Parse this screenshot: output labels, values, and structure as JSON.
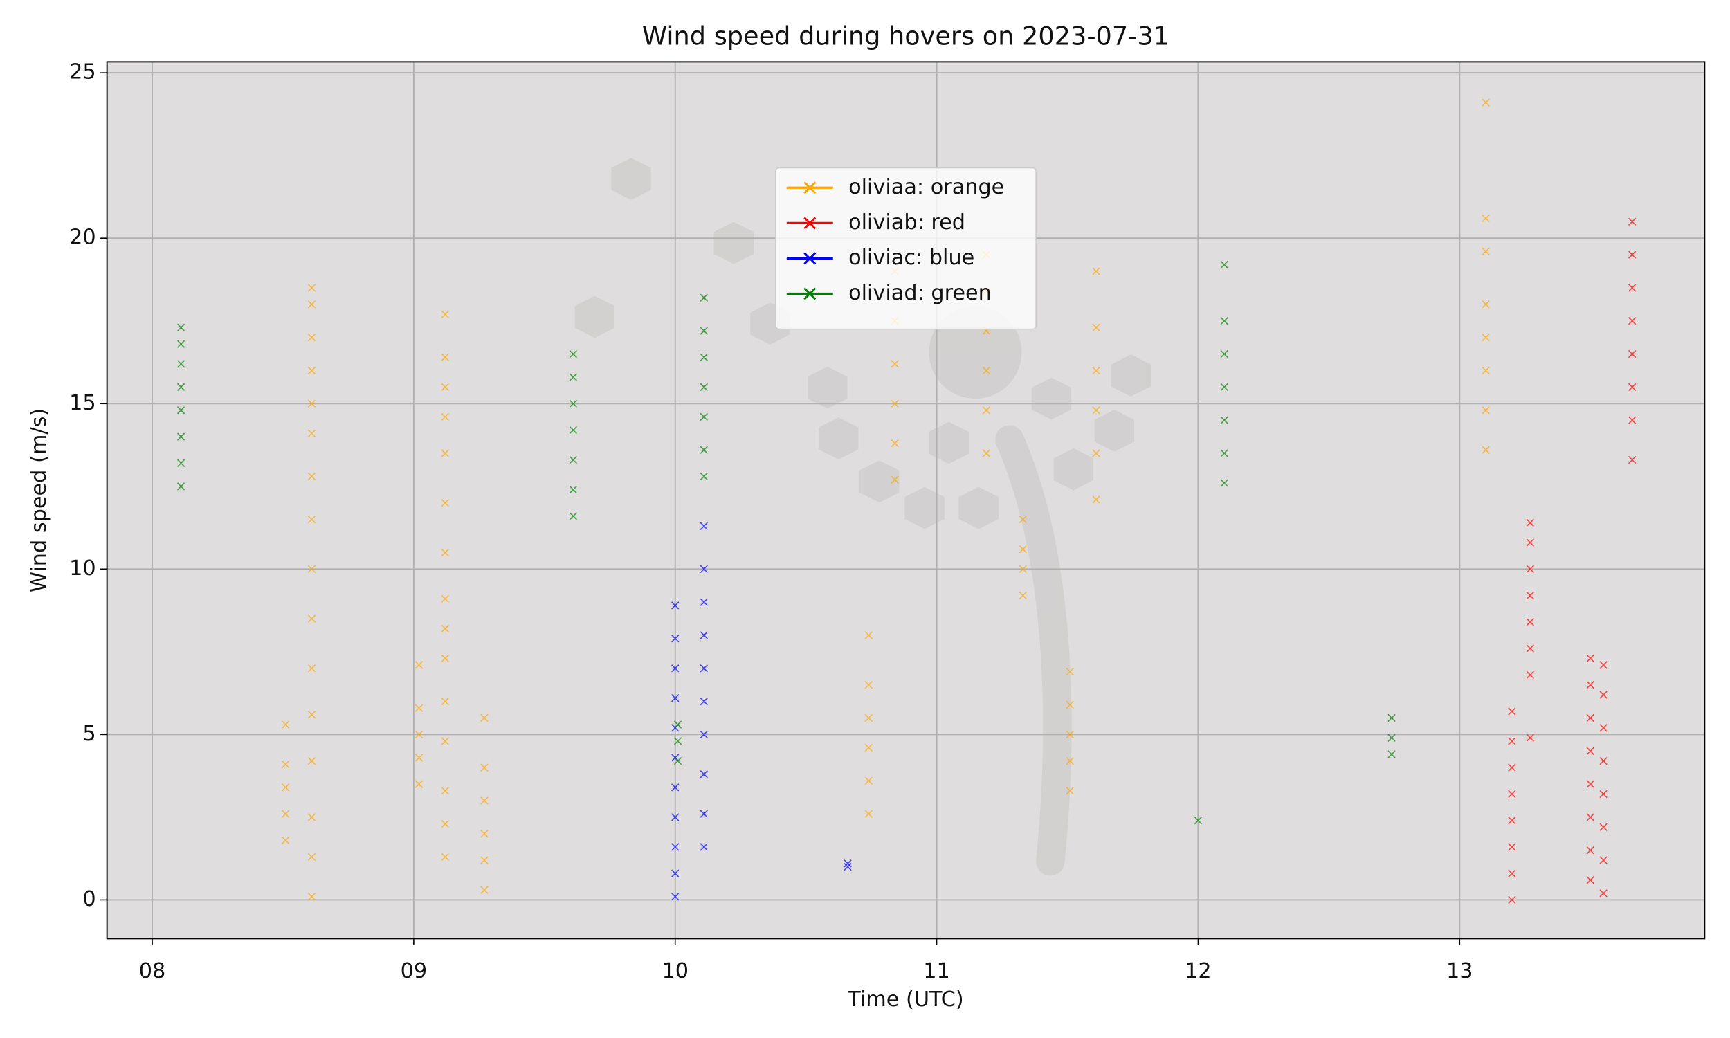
{
  "chart_data": {
    "type": "scatter",
    "title": "Wind speed during hovers on 2023-07-31",
    "x_label": "Time (UTC)",
    "y_label": "Wind speed (m/s)",
    "xlim": [
      7.827,
      13.937
    ],
    "ylim": [
      -1.17,
      25.33
    ],
    "xticks": [
      {
        "value": 8,
        "label": "08"
      },
      {
        "value": 9,
        "label": "09"
      },
      {
        "value": 10,
        "label": "10"
      },
      {
        "value": 11,
        "label": "11"
      },
      {
        "value": 12,
        "label": "12"
      },
      {
        "value": 13,
        "label": "13"
      }
    ],
    "yticks": [
      0,
      5,
      10,
      15,
      20,
      25
    ],
    "grid": true,
    "background": "#dfdddd",
    "legend_loc": "upper center",
    "series": [
      {
        "name": "oliviaa: orange",
        "color": "orange",
        "x": [
          8.51,
          8.51,
          8.51,
          8.51,
          8.51,
          8.61,
          8.61,
          8.61,
          8.61,
          8.61,
          8.61,
          8.61,
          8.61,
          8.61,
          8.61,
          8.61,
          8.61,
          8.61,
          8.61,
          8.61,
          8.61,
          9.02,
          9.02,
          9.02,
          9.02,
          9.02,
          9.12,
          9.12,
          9.12,
          9.12,
          9.12,
          9.12,
          9.12,
          9.12,
          9.12,
          9.12,
          9.12,
          9.12,
          9.12,
          9.12,
          9.12,
          9.27,
          9.27,
          9.27,
          9.27,
          9.27,
          9.27,
          10.74,
          10.74,
          10.74,
          10.74,
          10.74,
          10.74,
          10.84,
          10.84,
          10.84,
          10.84,
          10.84,
          10.84,
          11.19,
          11.19,
          11.19,
          11.19,
          11.19,
          11.19,
          11.33,
          11.33,
          11.33,
          11.33,
          11.51,
          11.51,
          11.51,
          11.51,
          11.51,
          11.61,
          11.61,
          11.61,
          11.61,
          11.61,
          11.61,
          13.1,
          13.1,
          13.1,
          13.1,
          13.1,
          13.1,
          13.1,
          13.1
        ],
        "values": [
          1.8,
          2.6,
          3.4,
          4.1,
          5.3,
          0.1,
          1.3,
          2.5,
          4.2,
          5.6,
          7.0,
          8.5,
          10.0,
          11.5,
          12.8,
          14.1,
          15.0,
          16.0,
          17.0,
          18.0,
          18.5,
          3.5,
          4.3,
          5.0,
          5.8,
          7.1,
          1.3,
          2.3,
          3.3,
          4.8,
          6.0,
          7.3,
          8.2,
          9.1,
          10.5,
          12.0,
          13.5,
          14.6,
          15.5,
          16.4,
          17.7,
          0.3,
          1.2,
          2.0,
          3.0,
          4.0,
          5.5,
          2.6,
          3.6,
          4.6,
          5.5,
          6.5,
          8.0,
          12.7,
          13.8,
          15.0,
          16.2,
          17.5,
          19.0,
          13.5,
          14.8,
          16.0,
          17.2,
          18.4,
          19.5,
          9.2,
          10.0,
          10.6,
          11.5,
          3.3,
          4.2,
          5.0,
          5.9,
          6.9,
          12.1,
          13.5,
          14.8,
          16.0,
          17.3,
          19.0,
          13.6,
          14.8,
          16.0,
          17.0,
          18.0,
          19.6,
          20.6,
          24.1
        ]
      },
      {
        "name": "oliviab: red",
        "color": "red",
        "x": [
          13.2,
          13.2,
          13.2,
          13.2,
          13.2,
          13.2,
          13.2,
          13.2,
          13.27,
          13.27,
          13.27,
          13.27,
          13.27,
          13.27,
          13.27,
          13.27,
          13.5,
          13.5,
          13.5,
          13.5,
          13.5,
          13.5,
          13.5,
          13.5,
          13.55,
          13.55,
          13.55,
          13.55,
          13.55,
          13.55,
          13.55,
          13.55,
          13.66,
          13.66,
          13.66,
          13.66,
          13.66,
          13.66,
          13.66,
          13.66
        ],
        "values": [
          0.0,
          0.8,
          1.6,
          2.4,
          3.2,
          4.0,
          4.8,
          5.7,
          4.9,
          6.8,
          7.6,
          8.4,
          9.2,
          10.0,
          10.8,
          11.4,
          0.6,
          1.5,
          2.5,
          3.5,
          4.5,
          5.5,
          6.5,
          7.3,
          0.2,
          1.2,
          2.2,
          3.2,
          4.2,
          5.2,
          6.2,
          7.1,
          13.3,
          14.5,
          15.5,
          16.5,
          17.5,
          18.5,
          19.5,
          20.5
        ]
      },
      {
        "name": "oliviac: blue",
        "color": "blue",
        "x": [
          10.0,
          10.0,
          10.0,
          10.0,
          10.0,
          10.0,
          10.0,
          10.0,
          10.0,
          10.0,
          10.0,
          10.11,
          10.11,
          10.11,
          10.11,
          10.11,
          10.11,
          10.11,
          10.11,
          10.11,
          10.11,
          10.66,
          10.66
        ],
        "values": [
          0.1,
          0.8,
          1.6,
          2.5,
          3.4,
          4.3,
          5.2,
          6.1,
          7.0,
          7.9,
          8.9,
          1.6,
          2.6,
          3.8,
          5.0,
          6.0,
          7.0,
          8.0,
          9.0,
          10.0,
          11.3,
          1.0,
          1.1
        ]
      },
      {
        "name": "oliviad: green",
        "color": "green",
        "x": [
          8.11,
          8.11,
          8.11,
          8.11,
          8.11,
          8.11,
          8.11,
          8.11,
          9.61,
          9.61,
          9.61,
          9.61,
          9.61,
          9.61,
          9.61,
          10.01,
          10.01,
          10.01,
          10.11,
          10.11,
          10.11,
          10.11,
          10.11,
          10.11,
          10.11,
          12.0,
          12.1,
          12.1,
          12.1,
          12.1,
          12.1,
          12.1,
          12.1,
          12.74,
          12.74,
          12.74
        ],
        "values": [
          12.5,
          13.2,
          14.0,
          14.8,
          15.5,
          16.2,
          16.8,
          17.3,
          11.6,
          12.4,
          13.3,
          14.2,
          15.0,
          15.8,
          16.5,
          4.2,
          4.8,
          5.3,
          12.8,
          13.6,
          14.6,
          15.5,
          16.4,
          17.2,
          18.2,
          2.4,
          12.6,
          13.5,
          14.5,
          15.5,
          16.5,
          17.5,
          19.2,
          4.4,
          4.9,
          5.5
        ]
      }
    ]
  }
}
